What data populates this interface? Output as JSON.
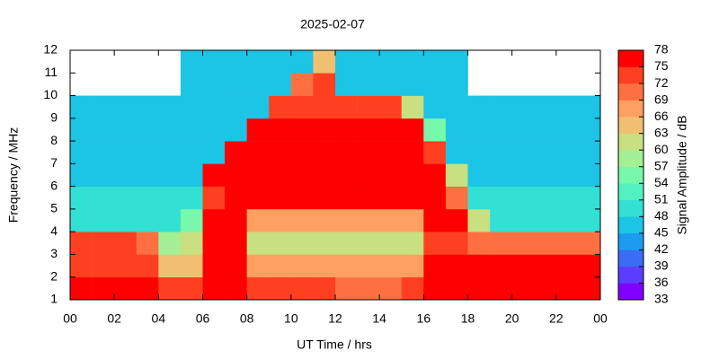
{
  "chart_data": {
    "type": "heatmap",
    "title": "2025-02-07",
    "xlabel": "UT Time / hrs",
    "ylabel": "Frequency / MHz",
    "colorbar_label": "Signal Amplitude / dB",
    "xlim": [
      0,
      24
    ],
    "ylim": [
      1,
      12
    ],
    "xticks": [
      {
        "value": 0,
        "label": "00"
      },
      {
        "value": 2,
        "label": "02"
      },
      {
        "value": 4,
        "label": "04"
      },
      {
        "value": 6,
        "label": "06"
      },
      {
        "value": 8,
        "label": "08"
      },
      10,
      12,
      14,
      16,
      18,
      20,
      22,
      {
        "value": 24,
        "label": "00"
      }
    ],
    "yticks": [
      1,
      2,
      3,
      4,
      5,
      6,
      7,
      8,
      9,
      10,
      11,
      12
    ],
    "zlim": [
      33,
      78
    ],
    "zticks": [
      33,
      36,
      39,
      42,
      45,
      48,
      51,
      54,
      57,
      60,
      63,
      66,
      69,
      72,
      75,
      78
    ],
    "colorscale": [
      "#8000ff",
      "#5c3cff",
      "#3a6cf5",
      "#1c9cf0",
      "#1cc4e6",
      "#33e0d4",
      "#52f2c0",
      "#78f8aa",
      "#a4f094",
      "#c8e080",
      "#f0c070",
      "#ffa060",
      "#ff7040",
      "#ff4020",
      "#ff0000"
    ],
    "x_bins": [
      0,
      1,
      2,
      3,
      4,
      5,
      6,
      7,
      8,
      9,
      10,
      11,
      12,
      13,
      14,
      15,
      16,
      17,
      18,
      19,
      20,
      21,
      22,
      23,
      24
    ],
    "y_bins": [
      1,
      2,
      3,
      4,
      5,
      6,
      7,
      8,
      9,
      10,
      11,
      12
    ],
    "z": [
      [
        75,
        75,
        75,
        75,
        72,
        72,
        75,
        75,
        74,
        73,
        72,
        72,
        70,
        70,
        70,
        72,
        75,
        75,
        75,
        75,
        75,
        75,
        75,
        75
      ],
      [
        72,
        72,
        72,
        72,
        65,
        65,
        75,
        75,
        66,
        66,
        66,
        66,
        66,
        66,
        66,
        66,
        75,
        75,
        75,
        75,
        75,
        75,
        75,
        75
      ],
      [
        72,
        72,
        72,
        70,
        57,
        60,
        75,
        75,
        60,
        60,
        60,
        60,
        60,
        60,
        60,
        60,
        72,
        72,
        70,
        70,
        70,
        70,
        70,
        70
      ],
      [
        48,
        48,
        48,
        48,
        48,
        55,
        75,
        75,
        68,
        68,
        68,
        68,
        68,
        68,
        68,
        68,
        75,
        75,
        60,
        48,
        48,
        48,
        48,
        48
      ],
      [
        49,
        49,
        49,
        49,
        49,
        49,
        72,
        75,
        75,
        75,
        75,
        75,
        75,
        75,
        75,
        75,
        75,
        70,
        48,
        48,
        48,
        48,
        48,
        48
      ],
      [
        47,
        47,
        47,
        47,
        47,
        47,
        76,
        76,
        76,
        76,
        76,
        76,
        76,
        76,
        76,
        76,
        75,
        60,
        47,
        47,
        47,
        47,
        47,
        47
      ],
      [
        47,
        47,
        47,
        47,
        47,
        47,
        47,
        76,
        76,
        76,
        76,
        76,
        76,
        76,
        76,
        76,
        72,
        47,
        47,
        47,
        47,
        47,
        47,
        47
      ],
      [
        47,
        47,
        47,
        47,
        47,
        47,
        47,
        47,
        76,
        76,
        76,
        76,
        76,
        76,
        76,
        76,
        55,
        47,
        47,
        47,
        47,
        47,
        47,
        47
      ],
      [
        47,
        47,
        47,
        47,
        47,
        47,
        47,
        47,
        47,
        72,
        74,
        74,
        74,
        74,
        74,
        60,
        47,
        47,
        47,
        47,
        47,
        47,
        47,
        47
      ],
      [
        null,
        null,
        null,
        null,
        null,
        47,
        47,
        47,
        47,
        47,
        70,
        72,
        47,
        47,
        47,
        47,
        47,
        47,
        null,
        null,
        null,
        null,
        null,
        null
      ],
      [
        null,
        null,
        null,
        null,
        null,
        47,
        47,
        47,
        47,
        47,
        47,
        65,
        47,
        47,
        47,
        47,
        47,
        47,
        null,
        null,
        null,
        null,
        null,
        null
      ]
    ]
  }
}
